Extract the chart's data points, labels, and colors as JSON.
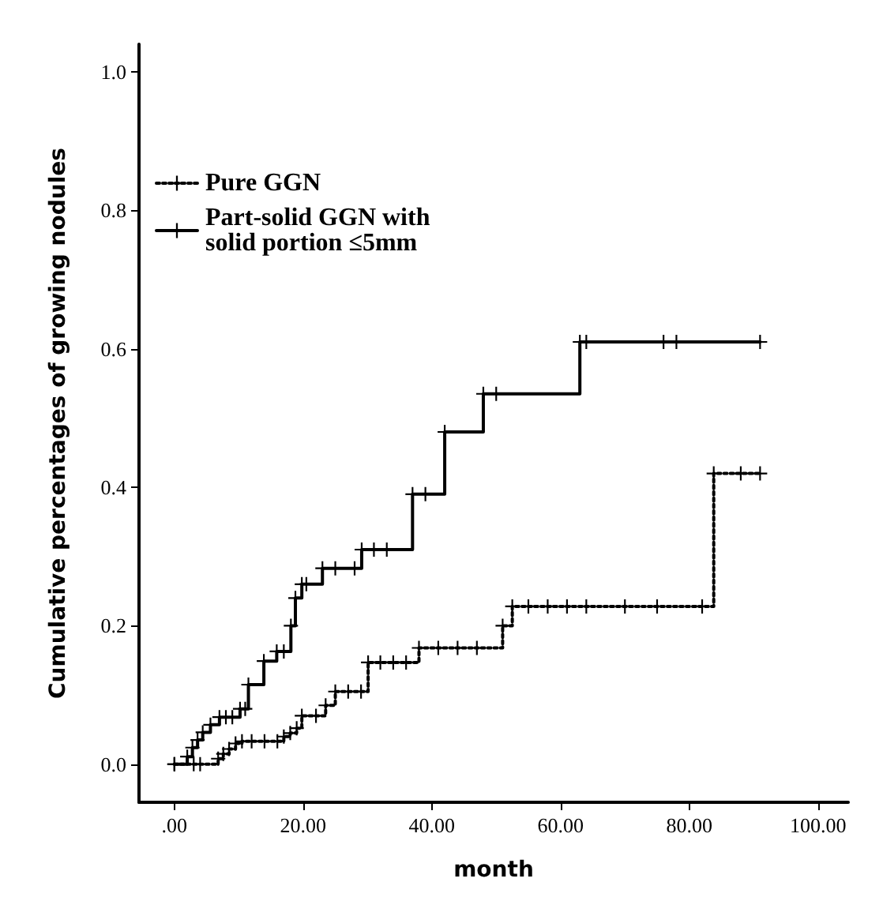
{
  "chart_data": {
    "type": "step",
    "xlabel": "month",
    "ylabel": "Cumulative percentages of growing nodules",
    "xlim": [
      -5.5,
      104.7
    ],
    "ylim": [
      -0.055,
      1.04
    ],
    "xticks": [
      {
        "value": 0,
        "label": ".00"
      },
      {
        "value": 20,
        "label": "20.00"
      },
      {
        "value": 40,
        "label": "40.00"
      },
      {
        "value": 60,
        "label": "60.00"
      },
      {
        "value": 80,
        "label": "80.00"
      },
      {
        "value": 100,
        "label": "100.00"
      }
    ],
    "yticks": [
      {
        "value": 0,
        "label": "0.0"
      },
      {
        "value": 0.2,
        "label": "0.2"
      },
      {
        "value": 0.4,
        "label": "0.4"
      },
      {
        "value": 0.6,
        "label": "0.6"
      },
      {
        "value": 0.8,
        "label": "0.8"
      },
      {
        "value": 1,
        "label": "1.0"
      }
    ],
    "grid": false,
    "legend": "top left",
    "marker": "cross",
    "series": [
      {
        "name": "Pure GGN",
        "color": "#000000",
        "line_style": "dotted",
        "x": [
          0,
          3,
          4,
          6.8,
          7.6,
          8.5,
          9.5,
          10.5,
          12,
          14,
          16,
          17,
          18,
          19,
          19.8,
          22,
          23.5,
          25,
          27,
          29,
          30.1,
          32,
          34,
          36,
          38,
          41,
          44,
          47,
          51,
          52.5,
          55,
          58,
          61,
          64,
          70,
          75,
          82,
          83.8,
          88,
          91
        ],
        "values": [
          0,
          0,
          0,
          0.008,
          0.015,
          0.022,
          0.03,
          0.033,
          0.033,
          0.033,
          0.033,
          0.04,
          0.045,
          0.052,
          0.07,
          0.07,
          0.085,
          0.105,
          0.105,
          0.105,
          0.147,
          0.147,
          0.147,
          0.147,
          0.168,
          0.168,
          0.168,
          0.168,
          0.2,
          0.228,
          0.228,
          0.228,
          0.228,
          0.228,
          0.228,
          0.228,
          0.228,
          0.42,
          0.42,
          0.42
        ]
      },
      {
        "name": "Part-solid GGN with solid portion ≤5mm",
        "color": "#000000",
        "line_style": "solid",
        "x": [
          0,
          2,
          2.8,
          3.6,
          4.4,
          5.6,
          7,
          8,
          9,
          10.2,
          11,
          11.5,
          13.9,
          15.9,
          17,
          18.1,
          18.8,
          19.8,
          20.5,
          23,
          25,
          28,
          29.1,
          31,
          33,
          37,
          39,
          42,
          48,
          50,
          63,
          64,
          76,
          78,
          91
        ],
        "values": [
          0,
          0.011,
          0.024,
          0.035,
          0.046,
          0.057,
          0.068,
          0.068,
          0.068,
          0.08,
          0.08,
          0.115,
          0.149,
          0.163,
          0.163,
          0.2,
          0.24,
          0.26,
          0.26,
          0.283,
          0.283,
          0.283,
          0.31,
          0.31,
          0.31,
          0.39,
          0.39,
          0.48,
          0.535,
          0.535,
          0.61,
          0.61,
          0.61,
          0.61,
          0.61
        ]
      }
    ]
  }
}
